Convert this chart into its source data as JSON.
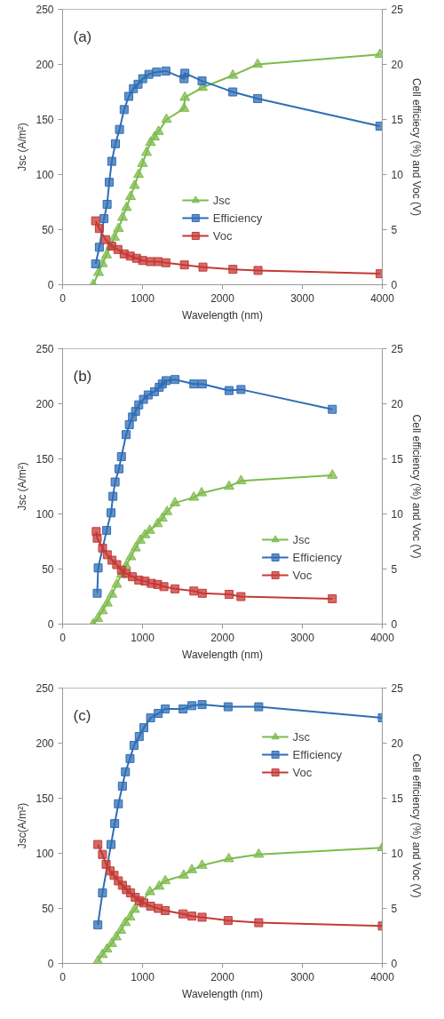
{
  "chart_data": [
    {
      "type": "line",
      "annotations": [
        "(a)"
      ],
      "xlabel": "Wavelength (nm)",
      "ylabel": "Jsc (A/m²)",
      "y2label": "Cell efficiecy (%) and Voc (V)",
      "xlim": [
        0,
        4000
      ],
      "xticks": [
        0,
        1000,
        2000,
        3000,
        4000
      ],
      "ylim": [
        0,
        250
      ],
      "yticks": [
        0,
        50,
        100,
        150,
        200,
        250
      ],
      "y2lim": [
        0,
        25
      ],
      "y2ticks": [
        0,
        5,
        10,
        15,
        20,
        25
      ],
      "grid": false,
      "legend": "bottom",
      "line_style": "solid",
      "series": [
        {
          "name": "Jsc",
          "color": "#7dbb4c",
          "marker": "triangle",
          "x": [
            383,
            450,
            500,
            550,
            600,
            650,
            700,
            750,
            800,
            850,
            900,
            950,
            1000,
            1050,
            1100,
            1150,
            1200,
            1300,
            1520,
            1530,
            1750,
            2130,
            2440,
            3970
          ],
          "values": [
            0,
            11,
            19,
            27,
            35,
            43,
            51,
            61,
            70,
            80,
            90,
            100,
            110,
            120,
            129,
            134,
            139,
            150,
            160,
            170,
            179,
            190,
            200,
            209
          ]
        },
        {
          "name": "Efficiency",
          "color": "#2f6db5",
          "marker": "square",
          "axis": "y2",
          "x": [
            413,
            460,
            518,
            557,
            584,
            615,
            661,
            712,
            770,
            828,
            886,
            944,
            1002,
            1079,
            1176,
            1292,
            1520,
            1530,
            1745,
            2130,
            2440,
            3970
          ],
          "values": [
            1.9,
            3.4,
            6.0,
            7.3,
            9.3,
            11.2,
            12.8,
            14.1,
            15.9,
            17.1,
            17.8,
            18.2,
            18.7,
            19.1,
            19.3,
            19.4,
            18.7,
            19.2,
            18.5,
            17.5,
            16.9,
            14.4
          ]
        },
        {
          "name": "Voc",
          "color": "#c43a36",
          "marker": "square",
          "axis": "y2",
          "x": [
            413,
            460,
            537,
            615,
            692,
            770,
            847,
            925,
            1002,
            1099,
            1195,
            1292,
            1524,
            1756,
            2131,
            2445,
            3973
          ],
          "values": [
            5.8,
            5.1,
            4.1,
            3.5,
            3.2,
            2.8,
            2.6,
            2.4,
            2.2,
            2.1,
            2.1,
            2.0,
            1.8,
            1.6,
            1.4,
            1.3,
            1.0
          ]
        }
      ]
    },
    {
      "type": "line",
      "annotations": [
        "(b)"
      ],
      "xlabel": "Wavelength (nm)",
      "ylabel": "Jsc (A/m²)",
      "y2label": "Cell efficiency (%) and Voc (V)",
      "xlim": [
        0,
        4000
      ],
      "xticks": [
        0,
        1000,
        2000,
        3000,
        4000
      ],
      "ylim": [
        0,
        250
      ],
      "yticks": [
        0,
        50,
        100,
        150,
        200,
        250
      ],
      "y2lim": [
        0,
        25
      ],
      "y2ticks": [
        0,
        5,
        10,
        15,
        20,
        25
      ],
      "grid": false,
      "legend": "bottom right",
      "line_style": "solid",
      "series": [
        {
          "name": "Jsc",
          "color": "#7dbb4c",
          "marker": "triangle",
          "x": [
            382,
            441,
            500,
            559,
            618,
            677,
            736,
            795,
            854,
            913,
            972,
            1031,
            1091,
            1189,
            1248,
            1307,
            1406,
            1642,
            1740,
            2083,
            2232,
            3375
          ],
          "values": [
            0,
            5,
            12,
            19,
            27,
            36,
            45,
            53,
            61,
            69,
            76,
            81,
            85,
            91,
            96,
            102,
            110,
            115,
            119,
            125,
            130,
            135
          ]
        },
        {
          "name": "Efficiency",
          "color": "#2f6db5",
          "marker": "square",
          "axis": "y2",
          "x": [
            433,
            445,
            551,
            606,
            630,
            657,
            705,
            736,
            795,
            835,
            874,
            913,
            953,
            1012,
            1071,
            1150,
            1209,
            1248,
            1295,
            1406,
            1642,
            1748,
            2083,
            2232,
            3375
          ],
          "values": [
            2.8,
            5.1,
            8.5,
            10.1,
            11.6,
            12.9,
            14.1,
            15.2,
            17.2,
            18.1,
            18.8,
            19.3,
            19.9,
            20.4,
            20.8,
            21.1,
            21.5,
            21.8,
            22.1,
            22.2,
            21.8,
            21.8,
            21.2,
            21.3,
            19.5
          ]
        },
        {
          "name": "Voc",
          "color": "#c43a36",
          "marker": "square",
          "axis": "y2",
          "x": [
            421,
            433,
            500,
            559,
            618,
            677,
            736,
            795,
            874,
            953,
            1031,
            1110,
            1189,
            1268,
            1406,
            1642,
            1748,
            2083,
            2232,
            3375
          ],
          "values": [
            8.4,
            7.8,
            6.9,
            6.3,
            5.8,
            5.4,
            4.9,
            4.6,
            4.3,
            4.0,
            3.9,
            3.7,
            3.6,
            3.4,
            3.2,
            3.0,
            2.8,
            2.7,
            2.5,
            2.3
          ]
        }
      ]
    },
    {
      "type": "line",
      "annotations": [
        "(c)"
      ],
      "xlabel": "Wavelength (nm)",
      "ylabel": "Jsc(A/m²)",
      "y2label": "Cell efficiency (%) and Voc (V)",
      "xlim": [
        0,
        4000
      ],
      "xticks": [
        0,
        1000,
        2000,
        3000,
        4000
      ],
      "ylim": [
        0,
        250
      ],
      "yticks": [
        0,
        50,
        100,
        150,
        200,
        250
      ],
      "y2lim": [
        0,
        25
      ],
      "y2ticks": [
        0,
        5,
        10,
        15,
        20,
        25
      ],
      "grid": false,
      "legend": "top right",
      "line_style": "solid",
      "series": [
        {
          "name": "Jsc",
          "color": "#7dbb4c",
          "marker": "triangle",
          "x": [
            441,
            499,
            556,
            614,
            671,
            729,
            786,
            844,
            901,
            1093,
            1208,
            1285,
            1515,
            1618,
            1745,
            2079,
            2454,
            4000
          ],
          "values": [
            2,
            8,
            13,
            18,
            24,
            30,
            37,
            42,
            49,
            65,
            70,
            75,
            80,
            85,
            89,
            95,
            99,
            105
          ]
        },
        {
          "name": "Efficiency",
          "color": "#2f6db5",
          "marker": "square",
          "axis": "y2",
          "x": [
            441,
            499,
            606,
            652,
            698,
            748,
            786,
            844,
            893,
            959,
            1017,
            1101,
            1197,
            1285,
            1507,
            1618,
            1745,
            2071,
            2454,
            4000
          ],
          "values": [
            3.5,
            6.4,
            10.8,
            12.7,
            14.5,
            16.1,
            17.4,
            18.6,
            19.8,
            20.6,
            21.4,
            22.3,
            22.7,
            23.1,
            23.1,
            23.4,
            23.5,
            23.3,
            23.3,
            22.3
          ]
        },
        {
          "name": "Voc",
          "color": "#c43a36",
          "marker": "square",
          "axis": "y2",
          "x": [
            441,
            499,
            545,
            594,
            644,
            698,
            748,
            798,
            851,
            909,
            959,
            1017,
            1101,
            1197,
            1285,
            1507,
            1618,
            1745,
            2071,
            2454,
            4000
          ],
          "values": [
            10.8,
            9.9,
            9.0,
            8.4,
            8.0,
            7.5,
            7.1,
            6.7,
            6.4,
            6.0,
            5.7,
            5.5,
            5.2,
            5.0,
            4.8,
            4.5,
            4.3,
            4.2,
            3.9,
            3.7,
            3.4
          ]
        }
      ]
    }
  ]
}
